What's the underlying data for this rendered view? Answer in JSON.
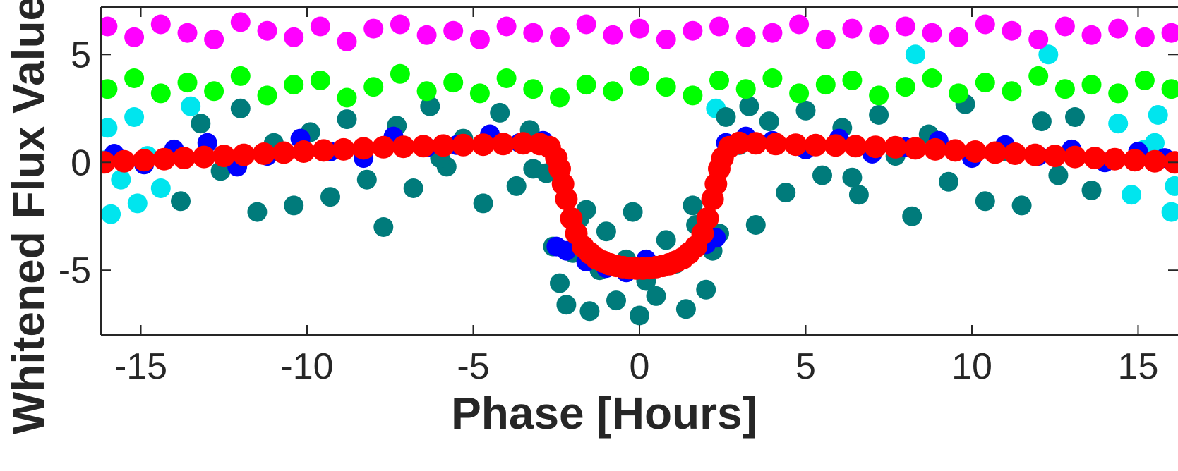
{
  "chart_data": {
    "type": "scatter",
    "title": "",
    "xlabel": "Phase [Hours]",
    "ylabel": "Whitened Flux Value",
    "xlim": [
      -16.2,
      16.2
    ],
    "ylim": [
      -8,
      7.2
    ],
    "grid": false,
    "x_ticks": [
      -15,
      -10,
      -5,
      0,
      5,
      10,
      15
    ],
    "x_tick_labels": [
      "-15",
      "-10",
      "-5",
      "0",
      "5",
      "10",
      "15"
    ],
    "y_ticks": [
      -5,
      0,
      5
    ],
    "y_tick_labels": [
      "-5",
      "0",
      "5"
    ],
    "series": [
      {
        "color": "#00e5ee",
        "x": [
          -16.0,
          -15.6,
          -15.2,
          -14.8,
          -14.4,
          14.4,
          14.8,
          15.2,
          15.6,
          16.0,
          -15.9,
          -15.1,
          15.5,
          -16.1,
          16.1,
          8.3,
          12.3,
          -13.5,
          2.3
        ],
        "y": [
          1.6,
          -0.8,
          2.1,
          0.3,
          -1.2,
          1.8,
          -1.5,
          0.6,
          2.2,
          -2.3,
          -2.4,
          -1.9,
          0.9,
          0.1,
          -1.1,
          5.0,
          5.0,
          2.6,
          2.5
        ]
      },
      {
        "color": "#007b7b",
        "x": [
          -13.8,
          -13.2,
          -12.6,
          -12.0,
          -11.5,
          -11.0,
          -10.4,
          -9.9,
          -9.3,
          -8.8,
          -8.2,
          -7.7,
          -7.3,
          -6.8,
          -6.3,
          -5.8,
          -5.3,
          -4.7,
          -4.2,
          -3.7,
          -3.3,
          -2.8,
          -2.6,
          -2.4,
          -2.2,
          -2.0,
          -1.8,
          -1.5,
          -1.2,
          -1.0,
          -0.7,
          -0.4,
          -0.2,
          0.0,
          0.2,
          0.5,
          0.8,
          1.1,
          1.4,
          1.7,
          2.0,
          2.2,
          2.4,
          2.6,
          3.0,
          3.5,
          3.9,
          4.4,
          5.0,
          5.5,
          6.1,
          6.6,
          7.2,
          7.7,
          8.2,
          8.7,
          9.3,
          9.8,
          10.4,
          11.0,
          11.5,
          12.1,
          12.6,
          13.1,
          13.6,
          -3.2,
          3.3,
          -6.0,
          6.4,
          -1.6,
          1.6
        ],
        "y": [
          -1.8,
          1.8,
          -0.4,
          2.5,
          -2.3,
          0.9,
          -2.0,
          1.4,
          -1.6,
          2.0,
          -0.8,
          -3.0,
          1.7,
          -1.2,
          2.6,
          -0.2,
          1.1,
          -1.9,
          2.3,
          -1.1,
          1.5,
          -0.5,
          -3.9,
          -5.6,
          -6.6,
          -4.2,
          -2.6,
          -6.9,
          -5.0,
          -3.2,
          -6.4,
          -4.5,
          -2.3,
          -7.1,
          -5.5,
          -6.2,
          -3.6,
          -4.7,
          -6.8,
          -2.9,
          -5.9,
          -4.1,
          -3.3,
          2.1,
          0.8,
          -2.9,
          1.9,
          -1.4,
          2.4,
          -0.6,
          1.6,
          -1.5,
          2.2,
          0.3,
          -2.5,
          1.3,
          -0.9,
          2.7,
          -1.8,
          0.5,
          -2.0,
          1.9,
          -0.6,
          2.1,
          -1.3,
          -0.3,
          2.6,
          0.2,
          -0.7,
          -2.2,
          -2.0
        ]
      },
      {
        "color": "#0000ff",
        "x": [
          -15.8,
          -14.9,
          -14.0,
          -13.0,
          -12.1,
          -11.2,
          -10.2,
          -9.3,
          -8.3,
          -7.4,
          -6.4,
          -5.5,
          -4.5,
          -3.6,
          -2.9,
          -2.5,
          -2.2,
          -1.6,
          -1.0,
          -0.4,
          0.2,
          0.8,
          1.4,
          2.0,
          2.3,
          2.6,
          3.2,
          4.0,
          5.0,
          6.0,
          7.0,
          8.0,
          9.0,
          10.0,
          11.0,
          12.0,
          13.0,
          14.0,
          15.0,
          15.8
        ],
        "y": [
          0.4,
          -0.1,
          0.6,
          0.9,
          -0.2,
          0.3,
          1.1,
          0.5,
          0.2,
          1.2,
          0.7,
          0.8,
          1.3,
          0.9,
          1.0,
          -3.9,
          -4.1,
          -4.6,
          -4.9,
          -5.1,
          -4.5,
          -4.8,
          -4.3,
          -3.8,
          -3.5,
          0.9,
          1.2,
          1.0,
          0.6,
          1.1,
          0.4,
          0.7,
          1.0,
          0.2,
          0.8,
          0.3,
          0.6,
          0.0,
          0.5,
          0.2
        ]
      },
      {
        "color": "#00ff00",
        "x": [
          -16.0,
          -15.2,
          -14.4,
          -13.6,
          -12.8,
          -12.0,
          -11.2,
          -10.4,
          -9.6,
          -8.8,
          -8.0,
          -7.2,
          -6.4,
          -5.6,
          -4.8,
          -4.0,
          -3.2,
          -2.4,
          -1.6,
          -0.8,
          0.0,
          0.8,
          1.6,
          2.4,
          3.2,
          4.0,
          4.8,
          5.6,
          6.4,
          7.2,
          8.0,
          8.8,
          9.6,
          10.4,
          11.2,
          12.0,
          12.8,
          13.6,
          14.4,
          15.2,
          16.0
        ],
        "y": [
          3.4,
          3.9,
          3.2,
          3.7,
          3.3,
          4.0,
          3.1,
          3.6,
          3.8,
          3.0,
          3.5,
          4.1,
          3.3,
          3.7,
          3.2,
          3.9,
          3.4,
          3.0,
          3.6,
          3.3,
          4.0,
          3.5,
          3.1,
          3.8,
          3.4,
          3.9,
          3.2,
          3.6,
          3.8,
          3.1,
          3.5,
          3.9,
          3.2,
          3.7,
          3.3,
          4.0,
          3.4,
          3.6,
          3.2,
          3.8,
          3.4
        ]
      },
      {
        "color": "#ff00ff",
        "x": [
          -16.0,
          -15.2,
          -14.4,
          -13.6,
          -12.8,
          -12.0,
          -11.2,
          -10.4,
          -9.6,
          -8.8,
          -8.0,
          -7.2,
          -6.4,
          -5.6,
          -4.8,
          -4.0,
          -3.2,
          -2.4,
          -1.6,
          -0.8,
          0.0,
          0.8,
          1.6,
          2.4,
          3.2,
          4.0,
          4.8,
          5.6,
          6.4,
          7.2,
          8.0,
          8.8,
          9.6,
          10.4,
          11.2,
          12.0,
          12.8,
          13.6,
          14.4,
          15.2,
          16.0
        ],
        "y": [
          6.3,
          5.8,
          6.4,
          6.0,
          5.7,
          6.5,
          6.1,
          5.8,
          6.3,
          5.6,
          6.2,
          6.4,
          5.9,
          6.1,
          5.7,
          6.3,
          6.0,
          5.8,
          6.4,
          5.9,
          6.2,
          5.7,
          6.1,
          6.3,
          5.8,
          6.0,
          6.4,
          5.7,
          6.2,
          5.9,
          6.3,
          6.0,
          5.8,
          6.4,
          6.1,
          5.7,
          6.3,
          5.9,
          6.2,
          5.8,
          6.0
        ]
      },
      {
        "color": "#ff0000",
        "model": true,
        "x": [
          -16.1,
          -15.5,
          -14.9,
          -14.3,
          -13.7,
          -13.1,
          -12.5,
          -11.9,
          -11.3,
          -10.7,
          -10.1,
          -9.5,
          -8.9,
          -8.3,
          -7.7,
          -7.1,
          -6.5,
          -5.9,
          -5.3,
          -4.7,
          -4.1,
          -3.5,
          -3.0,
          -2.7,
          -2.5,
          -2.4,
          -2.3,
          -2.2,
          -2.05,
          -1.9,
          -1.7,
          -1.5,
          -1.3,
          -1.1,
          -0.9,
          -0.7,
          -0.5,
          -0.3,
          -0.1,
          0.1,
          0.3,
          0.5,
          0.7,
          0.9,
          1.1,
          1.3,
          1.5,
          1.7,
          1.9,
          2.05,
          2.2,
          2.3,
          2.4,
          2.5,
          2.7,
          3.0,
          3.5,
          4.1,
          4.7,
          5.3,
          5.9,
          6.5,
          7.1,
          7.7,
          8.3,
          8.9,
          9.5,
          10.1,
          10.7,
          11.3,
          11.9,
          12.5,
          13.1,
          13.7,
          14.3,
          14.9,
          15.5,
          16.1
        ],
        "y": [
          0.0,
          0.05,
          0.1,
          0.15,
          0.2,
          0.25,
          0.3,
          0.35,
          0.4,
          0.45,
          0.5,
          0.55,
          0.6,
          0.65,
          0.7,
          0.72,
          0.75,
          0.78,
          0.8,
          0.82,
          0.85,
          0.88,
          0.85,
          0.7,
          0.2,
          -0.3,
          -1.0,
          -1.7,
          -2.6,
          -3.3,
          -3.9,
          -4.2,
          -4.45,
          -4.6,
          -4.72,
          -4.8,
          -4.86,
          -4.9,
          -4.92,
          -4.92,
          -4.9,
          -4.86,
          -4.8,
          -4.72,
          -4.6,
          -4.45,
          -4.2,
          -3.9,
          -3.3,
          -2.6,
          -1.7,
          -1.0,
          -0.3,
          0.2,
          0.7,
          0.9,
          0.88,
          0.85,
          0.82,
          0.8,
          0.78,
          0.75,
          0.72,
          0.7,
          0.65,
          0.6,
          0.55,
          0.5,
          0.45,
          0.4,
          0.35,
          0.3,
          0.25,
          0.2,
          0.15,
          0.1,
          0.05,
          0.0
        ]
      }
    ]
  }
}
